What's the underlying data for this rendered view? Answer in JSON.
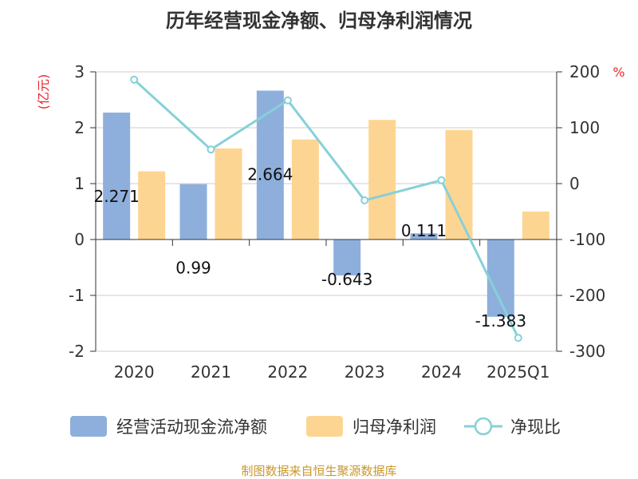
{
  "chart_data": {
    "type": "bar",
    "title": "历年经营现金净额、归母净利润情况",
    "categories": [
      "2020",
      "2021",
      "2022",
      "2023",
      "2024",
      "2025Q1"
    ],
    "series": [
      {
        "name": "经营活动现金流净额",
        "type": "bar",
        "axis": "left",
        "values": [
          2.271,
          0.99,
          2.664,
          -0.643,
          0.111,
          -1.383
        ],
        "labels": [
          "2.271",
          "0.99",
          "2.664",
          "-0.643",
          "0.111",
          "-1.383"
        ]
      },
      {
        "name": "归母净利润",
        "type": "bar",
        "axis": "left",
        "values": [
          1.22,
          1.63,
          1.79,
          2.14,
          1.96,
          0.5
        ]
      },
      {
        "name": "净现比",
        "type": "line",
        "axis": "right",
        "values": [
          186,
          61,
          149,
          -30,
          6,
          -276
        ]
      }
    ],
    "left_axis": {
      "unit": "(亿元)",
      "ticks": [
        "3",
        "2",
        "1",
        "0",
        "-1",
        "-2"
      ],
      "range": [
        -2,
        3
      ]
    },
    "right_axis": {
      "unit": "%",
      "ticks": [
        "200",
        "100",
        "0",
        "-100",
        "-200",
        "-300"
      ],
      "range": [
        -300,
        200
      ]
    },
    "legend_position": "bottom",
    "colors": {
      "bar1": "#8eafdc",
      "bar2": "#fdd592",
      "line": "#86d1d8"
    }
  },
  "source_text": "制图数据来自恒生聚源数据库"
}
